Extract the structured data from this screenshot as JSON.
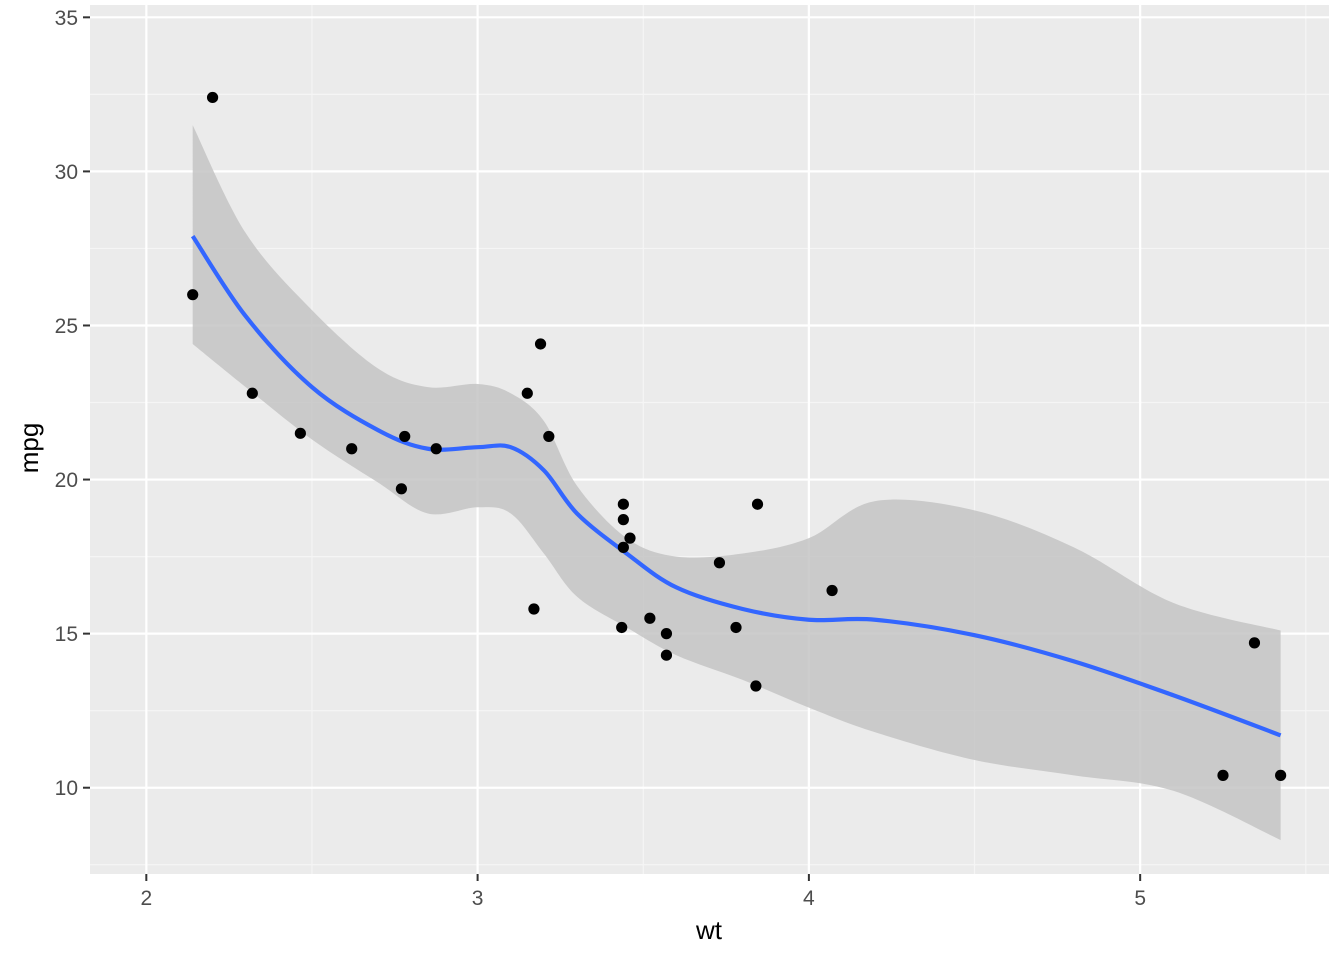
{
  "chart_data": {
    "type": "scatter",
    "xlabel": "wt",
    "ylabel": "mpg",
    "xlim": [
      1.83,
      5.57
    ],
    "ylim": [
      7.2,
      35.4
    ],
    "x_ticks": [
      2,
      3,
      4,
      5
    ],
    "x_tick_labels": [
      "2",
      "3",
      "4",
      "5"
    ],
    "y_ticks": [
      10,
      15,
      20,
      25,
      30,
      35
    ],
    "y_tick_labels": [
      "10",
      "15",
      "20",
      "25",
      "30",
      "35"
    ],
    "grid": true,
    "colors": {
      "panel_background": "#ebebeb",
      "grid_major": "#ffffff",
      "grid_minor": "#f5f5f5",
      "points": "#000000",
      "smooth_line": "#3366ff",
      "confidence_band": "#c4c4c4",
      "tick_text": "#4d4d4d",
      "axis_title": "#000000"
    },
    "points": [
      {
        "x": 2.14,
        "y": 26.0
      },
      {
        "x": 2.2,
        "y": 32.4
      },
      {
        "x": 2.32,
        "y": 22.8
      },
      {
        "x": 2.465,
        "y": 21.5
      },
      {
        "x": 2.62,
        "y": 21.0
      },
      {
        "x": 2.77,
        "y": 19.7
      },
      {
        "x": 2.78,
        "y": 21.4
      },
      {
        "x": 2.875,
        "y": 21.0
      },
      {
        "x": 3.15,
        "y": 22.8
      },
      {
        "x": 3.17,
        "y": 15.8
      },
      {
        "x": 3.19,
        "y": 24.4
      },
      {
        "x": 3.215,
        "y": 21.4
      },
      {
        "x": 3.435,
        "y": 15.2
      },
      {
        "x": 3.44,
        "y": 18.7
      },
      {
        "x": 3.44,
        "y": 19.2
      },
      {
        "x": 3.44,
        "y": 17.8
      },
      {
        "x": 3.46,
        "y": 18.1
      },
      {
        "x": 3.52,
        "y": 15.5
      },
      {
        "x": 3.57,
        "y": 15.0
      },
      {
        "x": 3.57,
        "y": 14.3
      },
      {
        "x": 3.73,
        "y": 17.3
      },
      {
        "x": 3.78,
        "y": 15.2
      },
      {
        "x": 3.84,
        "y": 13.3
      },
      {
        "x": 3.845,
        "y": 19.2
      },
      {
        "x": 4.07,
        "y": 16.4
      },
      {
        "x": 5.25,
        "y": 10.4
      },
      {
        "x": 5.345,
        "y": 14.7
      },
      {
        "x": 5.424,
        "y": 10.4
      }
    ],
    "smooth": {
      "method": "loess",
      "se": true,
      "x": [
        2.14,
        2.3,
        2.5,
        2.7,
        2.85,
        3.0,
        3.1,
        3.2,
        3.3,
        3.45,
        3.6,
        3.8,
        4.0,
        4.2,
        4.5,
        4.8,
        5.1,
        5.424
      ],
      "fit": [
        27.9,
        25.3,
        23.0,
        21.6,
        21.0,
        21.05,
        21.05,
        20.3,
        18.9,
        17.6,
        16.5,
        15.8,
        15.45,
        15.45,
        14.95,
        14.1,
        13.0,
        11.7
      ],
      "lower": [
        24.4,
        23.0,
        21.3,
        19.9,
        18.9,
        19.1,
        18.9,
        17.6,
        16.2,
        15.2,
        14.3,
        13.5,
        12.6,
        11.8,
        10.9,
        10.4,
        9.9,
        8.3
      ],
      "upper": [
        31.5,
        28.0,
        25.5,
        23.6,
        23.0,
        23.1,
        22.8,
        21.9,
        19.8,
        18.1,
        17.5,
        17.6,
        18.1,
        19.3,
        19.0,
        17.8,
        16.0,
        15.1
      ]
    }
  }
}
